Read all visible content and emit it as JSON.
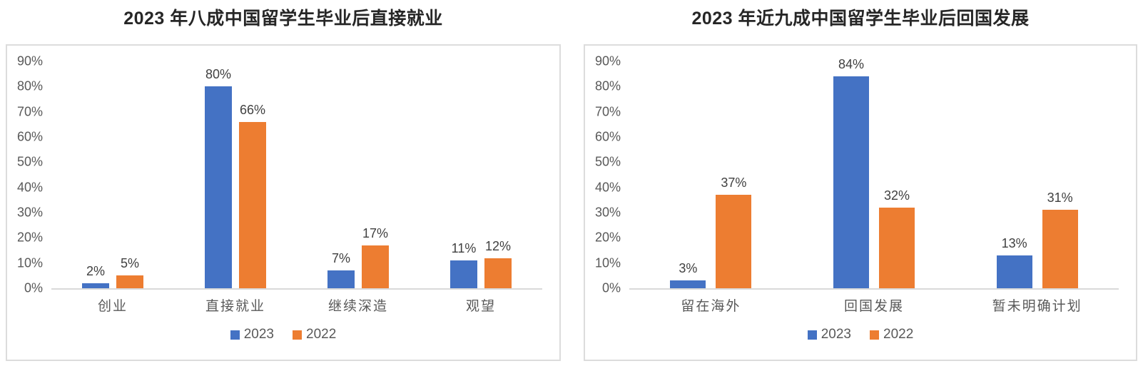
{
  "colors": {
    "series_2023": "#4472C4",
    "series_2022": "#ED7D31",
    "axis_line": "#D9D9D9",
    "panel_border": "#DCDCDC",
    "tick_text": "#595959",
    "data_label_text": "#404040",
    "title_text": "#262626"
  },
  "chart_data": [
    {
      "type": "bar",
      "title": "2023 年八成中国留学生毕业后直接就业",
      "categories": [
        "创业",
        "直接就业",
        "继续深造",
        "观望"
      ],
      "series": [
        {
          "name": "2023",
          "color": "#4472C4",
          "values": [
            2,
            80,
            7,
            11
          ]
        },
        {
          "name": "2022",
          "color": "#ED7D31",
          "values": [
            5,
            66,
            17,
            12
          ]
        }
      ],
      "value_suffix": "%",
      "ylim": [
        0,
        90
      ],
      "y_tick_step": 10,
      "y_tick_labels": [
        "90%",
        "80%",
        "70%",
        "60%",
        "50%",
        "40%",
        "30%",
        "20%",
        "10%",
        "0%"
      ],
      "grid": false,
      "legend_position": "bottom",
      "legend_labels": [
        "2023",
        "2022"
      ]
    },
    {
      "type": "bar",
      "title": "2023 年近九成中国留学生毕业后回国发展",
      "categories": [
        "留在海外",
        "回国发展",
        "暂未明确计划"
      ],
      "series": [
        {
          "name": "2023",
          "color": "#4472C4",
          "values": [
            3,
            84,
            13
          ]
        },
        {
          "name": "2022",
          "color": "#ED7D31",
          "values": [
            37,
            32,
            31
          ]
        }
      ],
      "value_suffix": "%",
      "ylim": [
        0,
        90
      ],
      "y_tick_step": 10,
      "y_tick_labels": [
        "90%",
        "80%",
        "70%",
        "60%",
        "50%",
        "40%",
        "30%",
        "20%",
        "10%",
        "0%"
      ],
      "grid": false,
      "legend_position": "bottom",
      "legend_labels": [
        "2023",
        "2022"
      ]
    }
  ]
}
